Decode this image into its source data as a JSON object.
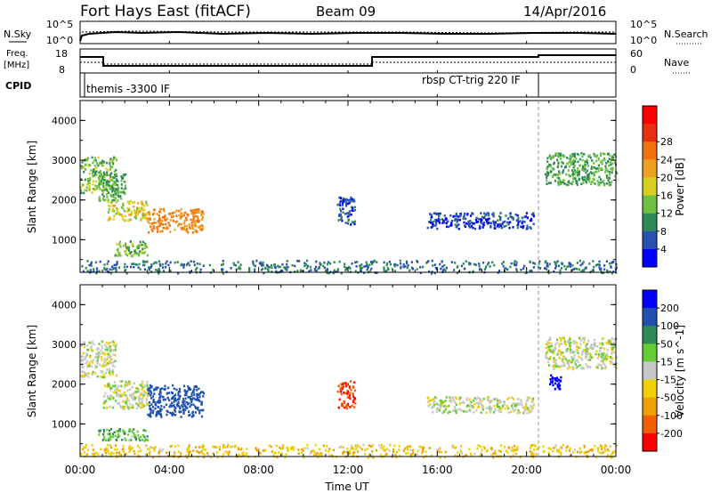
{
  "header": {
    "station": "Fort Hays East (fitACF)",
    "beam": "Beam 09",
    "date": "14/Apr/2016"
  },
  "strips": {
    "nsky_label": "N.Sky",
    "nsearch_label": "N.Search",
    "noise_left_ticks": [
      "10^5",
      "10^0"
    ],
    "noise_right_ticks": [
      "10^5",
      "10^0"
    ],
    "freq_label_1": "Freq.",
    "freq_label_2": "[MHz]",
    "freq_ticks": [
      "18",
      "8"
    ],
    "nave_label": "Nave",
    "nave_ticks": [
      "60",
      "0"
    ],
    "cpid_label": "CPID",
    "cpid_segments": [
      "themis -3300 IF",
      "rbsp CT-trig 220 IF"
    ]
  },
  "chart_data": [
    {
      "type": "heatmap",
      "panel": "power",
      "ylabel": "Slant Range [km]",
      "xlabel": "Time UT",
      "x_ticks": [
        "00:00",
        "04:00",
        "08:00",
        "12:00",
        "16:00",
        "20:00",
        "00:00"
      ],
      "xlim_hours": [
        0,
        24
      ],
      "y_ticks": [
        1000,
        2000,
        3000,
        4000
      ],
      "ylim": [
        180,
        4500
      ],
      "colorbar": {
        "label": "Power [dB]",
        "ticks": [
          "4",
          "8",
          "12",
          "16",
          "20",
          "24",
          "28"
        ],
        "colors": [
          "#0000ff",
          "#2a50b0",
          "#2e8b57",
          "#6fbf40",
          "#d8d020",
          "#f0a020",
          "#f07010",
          "#e83010",
          "#ff0000"
        ]
      },
      "regions": [
        {
          "t": [
            0.0,
            1.6
          ],
          "r": [
            2200,
            3100
          ],
          "value": 16
        },
        {
          "t": [
            0.8,
            2.0
          ],
          "r": [
            2000,
            2700
          ],
          "value": 14
        },
        {
          "t": [
            1.2,
            3.0
          ],
          "r": [
            1500,
            2000
          ],
          "value": 20
        },
        {
          "t": [
            3.0,
            5.5
          ],
          "r": [
            1200,
            1800
          ],
          "value": 26
        },
        {
          "t": [
            1.5,
            3.0
          ],
          "r": [
            600,
            1000
          ],
          "value": 16
        },
        {
          "t": [
            11.5,
            12.3
          ],
          "r": [
            1400,
            2100
          ],
          "value": 8
        },
        {
          "t": [
            15.5,
            20.3
          ],
          "r": [
            1300,
            1700
          ],
          "value": 7
        },
        {
          "t": [
            20.8,
            24.0
          ],
          "r": [
            2400,
            3200
          ],
          "value": 14
        },
        {
          "t": [
            0.0,
            24.0
          ],
          "r": [
            180,
            500
          ],
          "value": 10
        }
      ]
    },
    {
      "type": "heatmap",
      "panel": "velocity",
      "ylabel": "Slant Range [km]",
      "xlabel": "Time UT",
      "x_ticks": [
        "00:00",
        "04:00",
        "08:00",
        "12:00",
        "16:00",
        "20:00",
        "00:00"
      ],
      "xlim_hours": [
        0,
        24
      ],
      "y_ticks": [
        1000,
        2000,
        3000,
        4000
      ],
      "ylim": [
        180,
        4500
      ],
      "colorbar": {
        "label": "Velocity [m s^-1]",
        "ticks": [
          "200",
          "100",
          "50",
          "15",
          "-15",
          "-50",
          "-100",
          "-200"
        ],
        "colors": [
          "#0000ff",
          "#2050b0",
          "#2e8b57",
          "#66cc33",
          "#c8c8c8",
          "#f0d000",
          "#f0a000",
          "#f06000",
          "#ff0000"
        ]
      },
      "regions": [
        {
          "t": [
            0.0,
            1.6
          ],
          "r": [
            2200,
            3100
          ],
          "value": 0
        },
        {
          "t": [
            1.0,
            3.0
          ],
          "r": [
            1400,
            2100
          ],
          "value": 0
        },
        {
          "t": [
            3.0,
            5.5
          ],
          "r": [
            1200,
            2000
          ],
          "value": 150
        },
        {
          "t": [
            0.8,
            3.0
          ],
          "r": [
            600,
            900
          ],
          "value": 40
        },
        {
          "t": [
            11.5,
            12.3
          ],
          "r": [
            1400,
            2100
          ],
          "value": -200
        },
        {
          "t": [
            15.5,
            20.3
          ],
          "r": [
            1300,
            1700
          ],
          "value": 0
        },
        {
          "t": [
            20.8,
            24.0
          ],
          "r": [
            2400,
            3200
          ],
          "value": 0
        },
        {
          "t": [
            21.0,
            21.6
          ],
          "r": [
            1900,
            2300
          ],
          "value": 250
        },
        {
          "t": [
            0.0,
            24.0
          ],
          "r": [
            180,
            500
          ],
          "value": -40
        }
      ]
    }
  ]
}
